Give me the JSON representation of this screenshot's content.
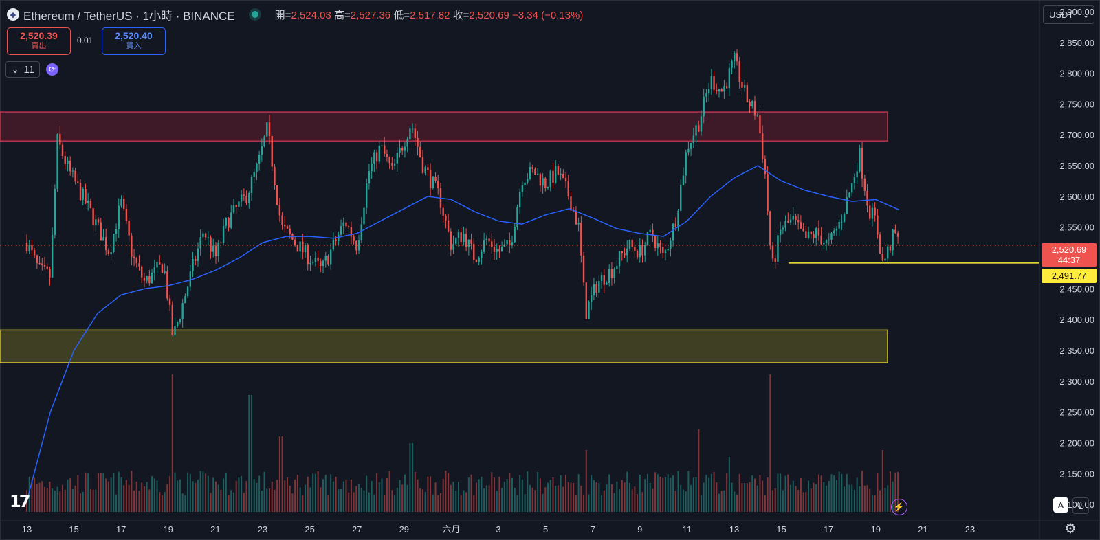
{
  "header": {
    "symbol_title": "Ethereum / TetherUS · 1小時 · BINANCE",
    "open_label": "開=",
    "open": "2,524.03",
    "high_label": "高=",
    "high": "2,527.36",
    "low_label": "低=",
    "low": "2,517.82",
    "close_label": "收=",
    "close": "2,520.69",
    "change": "−3.34 (−0.13%)"
  },
  "trade": {
    "sell_price": "2,520.39",
    "sell_label": "賣出",
    "spread": "0.01",
    "buy_price": "2,520.40",
    "buy_label": "買入"
  },
  "legend": {
    "indicator_count": "11"
  },
  "currency_selector": {
    "value": "USDT"
  },
  "price_badges": {
    "last_price": "2,520.69",
    "countdown": "44:37",
    "hline_price": "2,491.77"
  },
  "icons": [
    "ethereum-coin-icon",
    "live-dot-icon",
    "chevron-down-icon",
    "sync-icon",
    "tradingview-logo-icon",
    "lightning-icon",
    "gear-icon"
  ],
  "colors": {
    "up": "#26a69a",
    "down": "#ef5350",
    "ma": "#2962ff",
    "resistance": "#9b2335",
    "support": "#b5a82a",
    "hline": "#ffeb3b",
    "background": "#131722"
  },
  "chart_data": {
    "type": "candlestick",
    "yaxis": {
      "ticks": [
        "2,900.00",
        "2,850.00",
        "2,800.00",
        "2,750.00",
        "2,700.00",
        "2,650.00",
        "2,600.00",
        "2,550.00",
        "2,500.00",
        "2,450.00",
        "2,400.00",
        "2,350.00",
        "2,300.00",
        "2,250.00",
        "2,200.00",
        "2,150.00",
        "2,100.00"
      ],
      "range": [
        2080,
        2910
      ]
    },
    "xaxis": {
      "ticks": [
        "13",
        "15",
        "17",
        "19",
        "21",
        "23",
        "25",
        "27",
        "29",
        "六月",
        "3",
        "5",
        "7",
        "9",
        "11",
        "13",
        "15",
        "17",
        "19",
        "21",
        "23"
      ]
    },
    "last_price": 2520.69,
    "zones": [
      {
        "name": "resistance",
        "from": 2690,
        "to": 2737
      },
      {
        "name": "support",
        "from": 2330,
        "to": 2383
      }
    ],
    "horizontal_line": 2491.77,
    "price_path": [
      {
        "x": 13,
        "y": 2525
      },
      {
        "x": 13.5,
        "y": 2480
      },
      {
        "x": 14,
        "y": 2470
      },
      {
        "x": 14.3,
        "y": 2690
      },
      {
        "x": 14.8,
        "y": 2640
      },
      {
        "x": 15.5,
        "y": 2590
      },
      {
        "x": 16.5,
        "y": 2510
      },
      {
        "x": 17,
        "y": 2590
      },
      {
        "x": 17.5,
        "y": 2500
      },
      {
        "x": 18,
        "y": 2460
      },
      {
        "x": 18.8,
        "y": 2490
      },
      {
        "x": 19.2,
        "y": 2370
      },
      {
        "x": 19.5,
        "y": 2410
      },
      {
        "x": 20,
        "y": 2480
      },
      {
        "x": 20.5,
        "y": 2545
      },
      {
        "x": 21,
        "y": 2500
      },
      {
        "x": 21.5,
        "y": 2560
      },
      {
        "x": 22.3,
        "y": 2600
      },
      {
        "x": 22.8,
        "y": 2650
      },
      {
        "x": 23.2,
        "y": 2710
      },
      {
        "x": 23.8,
        "y": 2550
      },
      {
        "x": 24.5,
        "y": 2520
      },
      {
        "x": 25,
        "y": 2500
      },
      {
        "x": 25.5,
        "y": 2480
      },
      {
        "x": 26,
        "y": 2520
      },
      {
        "x": 26.5,
        "y": 2560
      },
      {
        "x": 27,
        "y": 2520
      },
      {
        "x": 27.5,
        "y": 2640
      },
      {
        "x": 28,
        "y": 2680
      },
      {
        "x": 28.5,
        "y": 2640
      },
      {
        "x": 29.3,
        "y": 2720
      },
      {
        "x": 29.8,
        "y": 2650
      },
      {
        "x": 30.5,
        "y": 2600
      },
      {
        "x": 31,
        "y": 2520
      },
      {
        "x": 31.5,
        "y": 2540
      },
      {
        "x": 32,
        "y": 2500
      },
      {
        "x": 32.5,
        "y": 2530
      },
      {
        "x": 33,
        "y": 2510
      },
      {
        "x": 33.5,
        "y": 2520
      },
      {
        "x": 34,
        "y": 2630
      },
      {
        "x": 34.5,
        "y": 2640
      },
      {
        "x": 35,
        "y": 2620
      },
      {
        "x": 35.5,
        "y": 2640
      },
      {
        "x": 36,
        "y": 2600
      },
      {
        "x": 36.4,
        "y": 2550
      },
      {
        "x": 36.7,
        "y": 2410
      },
      {
        "x": 37.2,
        "y": 2460
      },
      {
        "x": 37.8,
        "y": 2480
      },
      {
        "x": 38.5,
        "y": 2520
      },
      {
        "x": 39,
        "y": 2510
      },
      {
        "x": 39.5,
        "y": 2540
      },
      {
        "x": 40,
        "y": 2500
      },
      {
        "x": 40.5,
        "y": 2560
      },
      {
        "x": 41,
        "y": 2680
      },
      {
        "x": 41.5,
        "y": 2720
      },
      {
        "x": 42,
        "y": 2790
      },
      {
        "x": 42.5,
        "y": 2770
      },
      {
        "x": 43,
        "y": 2820
      },
      {
        "x": 43.5,
        "y": 2760
      },
      {
        "x": 44,
        "y": 2730
      },
      {
        "x": 44.3,
        "y": 2640
      },
      {
        "x": 44.6,
        "y": 2480
      },
      {
        "x": 45,
        "y": 2550
      },
      {
        "x": 45.5,
        "y": 2560
      },
      {
        "x": 46,
        "y": 2530
      },
      {
        "x": 46.5,
        "y": 2540
      },
      {
        "x": 47,
        "y": 2520
      },
      {
        "x": 47.5,
        "y": 2560
      },
      {
        "x": 48,
        "y": 2620
      },
      {
        "x": 48.3,
        "y": 2670
      },
      {
        "x": 48.7,
        "y": 2580
      },
      {
        "x": 49,
        "y": 2560
      },
      {
        "x": 49.3,
        "y": 2490
      },
      {
        "x": 49.6,
        "y": 2520
      },
      {
        "x": 49.8,
        "y": 2540
      },
      {
        "x": 50,
        "y": 2521
      }
    ],
    "moving_average": [
      {
        "x": 13,
        "y": 2105
      },
      {
        "x": 14,
        "y": 2250
      },
      {
        "x": 15,
        "y": 2350
      },
      {
        "x": 16,
        "y": 2410
      },
      {
        "x": 17,
        "y": 2440
      },
      {
        "x": 18,
        "y": 2450
      },
      {
        "x": 19,
        "y": 2455
      },
      {
        "x": 20,
        "y": 2465
      },
      {
        "x": 21,
        "y": 2480
      },
      {
        "x": 22,
        "y": 2500
      },
      {
        "x": 23,
        "y": 2525
      },
      {
        "x": 24,
        "y": 2535
      },
      {
        "x": 25,
        "y": 2535
      },
      {
        "x": 26,
        "y": 2532
      },
      {
        "x": 27,
        "y": 2540
      },
      {
        "x": 28,
        "y": 2560
      },
      {
        "x": 29,
        "y": 2580
      },
      {
        "x": 30,
        "y": 2600
      },
      {
        "x": 31,
        "y": 2595
      },
      {
        "x": 32,
        "y": 2575
      },
      {
        "x": 33,
        "y": 2560
      },
      {
        "x": 34,
        "y": 2555
      },
      {
        "x": 35,
        "y": 2570
      },
      {
        "x": 36,
        "y": 2580
      },
      {
        "x": 37,
        "y": 2565
      },
      {
        "x": 38,
        "y": 2548
      },
      {
        "x": 39,
        "y": 2540
      },
      {
        "x": 40,
        "y": 2535
      },
      {
        "x": 41,
        "y": 2560
      },
      {
        "x": 42,
        "y": 2600
      },
      {
        "x": 43,
        "y": 2630
      },
      {
        "x": 44,
        "y": 2650
      },
      {
        "x": 45,
        "y": 2625
      },
      {
        "x": 46,
        "y": 2610
      },
      {
        "x": 47,
        "y": 2600
      },
      {
        "x": 48,
        "y": 2592
      },
      {
        "x": 49,
        "y": 2595
      },
      {
        "x": 50,
        "y": 2578
      }
    ],
    "volume_spikes": [
      {
        "x": 19.2,
        "v": 1.0
      },
      {
        "x": 22.5,
        "v": 0.85
      },
      {
        "x": 23.8,
        "v": 0.55
      },
      {
        "x": 29.3,
        "v": 0.5
      },
      {
        "x": 36.7,
        "v": 0.45
      },
      {
        "x": 41.5,
        "v": 0.6
      },
      {
        "x": 42.8,
        "v": 0.4
      },
      {
        "x": 44.5,
        "v": 1.0
      },
      {
        "x": 49.3,
        "v": 0.45
      }
    ]
  }
}
